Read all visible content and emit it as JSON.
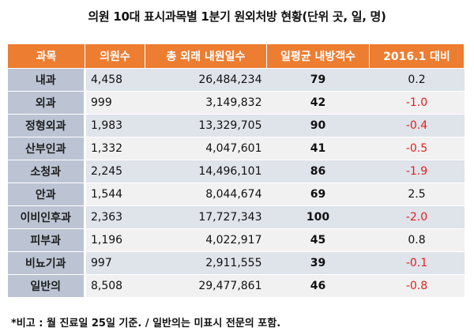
{
  "title": "의원 10대 표시과목별 1분기 원외처방 현황(단위 곳, 일, 명)",
  "table": {
    "headers": [
      "과목",
      "의원수",
      "총 외래 내원일수",
      "일평균 내방객수",
      "2016.1 대비"
    ],
    "rows": [
      {
        "subject": "내과",
        "clinics": "4,458",
        "visits": "26,484,234",
        "daily": "79",
        "change": "0.2"
      },
      {
        "subject": "외과",
        "clinics": "999",
        "visits": "3,149,832",
        "daily": "42",
        "change": "-1.0"
      },
      {
        "subject": "정형외과",
        "clinics": "1,983",
        "visits": "13,329,705",
        "daily": "90",
        "change": "-0.4"
      },
      {
        "subject": "산부인과",
        "clinics": "1,332",
        "visits": "4,047,601",
        "daily": "41",
        "change": "-0.5"
      },
      {
        "subject": "소청과",
        "clinics": "2,245",
        "visits": "14,496,101",
        "daily": "86",
        "change": "-1.9"
      },
      {
        "subject": "안과",
        "clinics": "1,544",
        "visits": "8,044,674",
        "daily": "69",
        "change": "2.5"
      },
      {
        "subject": "이비인후과",
        "clinics": "2,363",
        "visits": "17,727,343",
        "daily": "100",
        "change": "-2.0"
      },
      {
        "subject": "피부과",
        "clinics": "1,196",
        "visits": "4,022,917",
        "daily": "45",
        "change": "0.8"
      },
      {
        "subject": "비뇨기과",
        "clinics": "997",
        "visits": "2,911,555",
        "daily": "39",
        "change": "-0.1"
      },
      {
        "subject": "일반의",
        "clinics": "8,508",
        "visits": "29,477,861",
        "daily": "46",
        "change": "-0.8"
      }
    ]
  },
  "note": "*비고 : 월 진료일 25일 기준. / 일반의는 미표시 전문의 포함.",
  "colors": {
    "header_bg": "#ED7D31",
    "subject_bg": "#BCC4D3",
    "negative": "#E02020"
  }
}
